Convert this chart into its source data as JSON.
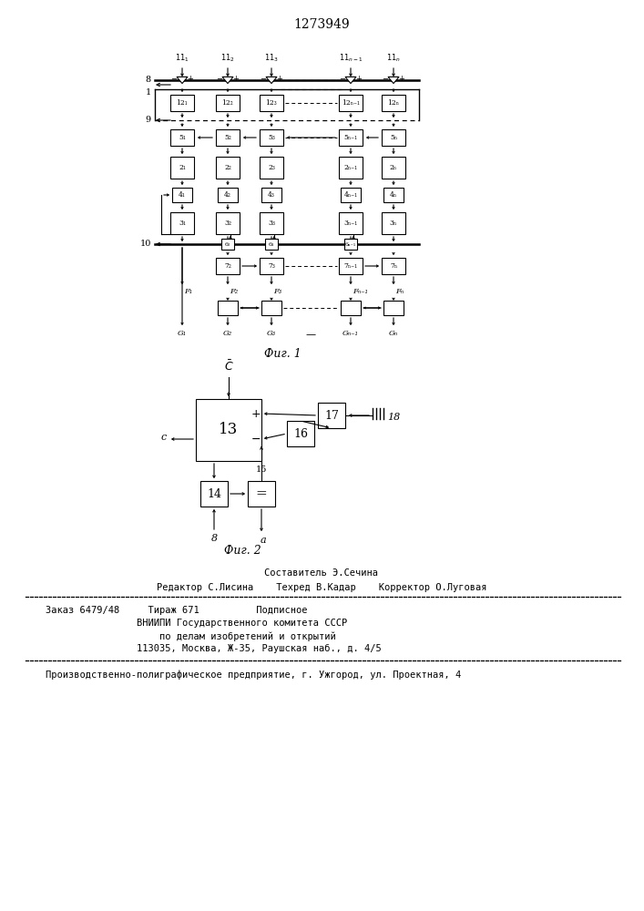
{
  "title": "1273949",
  "fig1_caption": "Фиг. 1",
  "fig2_caption": "Фиг. 2",
  "footer_composer": "Составитель Э.Сечина",
  "footer_row2": "Редактор С.Лисина    Техред В.Кадар    Корректор О.Луговая",
  "footer_order": "Заказ 6479/48",
  "footer_tirazh": "Тираж 671",
  "footer_podp": "Подписное",
  "footer_vniip1": "ВНИИПИ Государственного комитета СССР",
  "footer_vniip2": "по делам изобретений и открытий",
  "footer_addr": "113035, Москва, Ж-35, Раушская наб., д. 4/5",
  "footer_factory": "Производственно-полиграфическое предприятие, г. Ужгород, ул. Проектная, 4"
}
